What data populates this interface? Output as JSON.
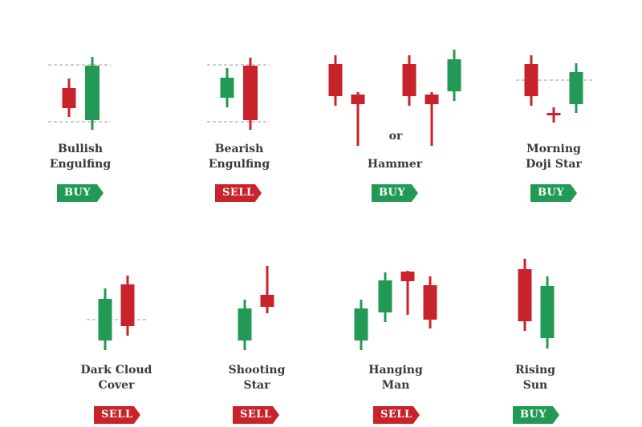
{
  "colors": {
    "bull": "#229a56",
    "bear": "#c8232a",
    "text": "#3a3a3a",
    "guide": "#bdbdbd"
  },
  "connector": "or",
  "patterns": [
    {
      "id": "bullish-engulfing",
      "title": "Bullish\nEngulfing",
      "signal": "BUY",
      "signal_color": "#229a56"
    },
    {
      "id": "bearish-engulfing",
      "title": "Bearish\nEngulfing",
      "signal": "SELL",
      "signal_color": "#c8232a"
    },
    {
      "id": "hammer",
      "title": "Hammer",
      "signal": "BUY",
      "signal_color": "#229a56"
    },
    {
      "id": "morning-doji-star",
      "title": "Morning\nDoji Star",
      "signal": "BUY",
      "signal_color": "#229a56"
    },
    {
      "id": "dark-cloud-cover",
      "title": "Dark Cloud\nCover",
      "signal": "SELL",
      "signal_color": "#c8232a"
    },
    {
      "id": "shooting-star",
      "title": "Shooting\nStar",
      "signal": "SELL",
      "signal_color": "#c8232a"
    },
    {
      "id": "hanging-man",
      "title": "Hanging\nMan",
      "signal": "SELL",
      "signal_color": "#c8232a"
    },
    {
      "id": "rising-sun",
      "title": "Rising\nSun",
      "signal": "BUY",
      "signal_color": "#229a56"
    }
  ]
}
